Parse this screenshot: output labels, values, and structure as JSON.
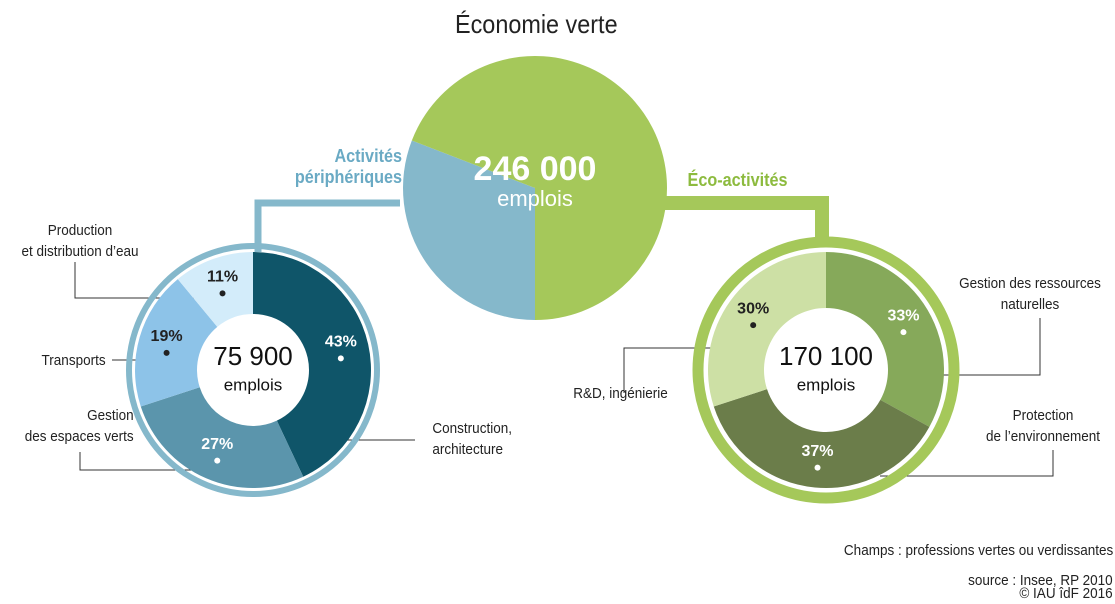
{
  "chart_data": [
    {
      "type": "pie",
      "title": "Économie verte",
      "total": 246000,
      "total_label": "246 000",
      "unit": "emplois"
    },
    {
      "type": "donut",
      "name": "Activités périphériques",
      "color": "#85b8cb",
      "text_color": "#6aaac4",
      "total": 75900,
      "total_label": "75 900",
      "unit": "emplois",
      "categories": [
        "Construction,\narchitecture",
        "Gestion\ndes espaces verts",
        "Transports",
        "Production\net distribution d’eau"
      ],
      "values": [
        43,
        27,
        19,
        11
      ],
      "value_labels": [
        "43%",
        "27%",
        "19%",
        "11%"
      ],
      "colors": [
        "#0f5569",
        "#5b95ac",
        "#8dc3e8",
        "#d3ecfa"
      ]
    },
    {
      "type": "donut",
      "name": "Éco-activités",
      "color": "#a5c85a",
      "text_color": "#8dbb3f",
      "total": 170100,
      "total_label": "170 100",
      "unit": "emplois",
      "categories": [
        "Gestion des ressources\nnaturelles",
        "Protection\nde l’environnement",
        "R&D, ingénierie"
      ],
      "values": [
        33,
        37,
        30
      ],
      "value_labels": [
        "33%",
        "37%",
        "30%"
      ],
      "colors": [
        "#86a95a",
        "#6b7d4a",
        "#cde0a5"
      ]
    }
  ],
  "notes": [
    "Champs : professions vertes ou verdissantes",
    "source : Insee, RP 2010",
    "© IAU îdF 2016"
  ]
}
